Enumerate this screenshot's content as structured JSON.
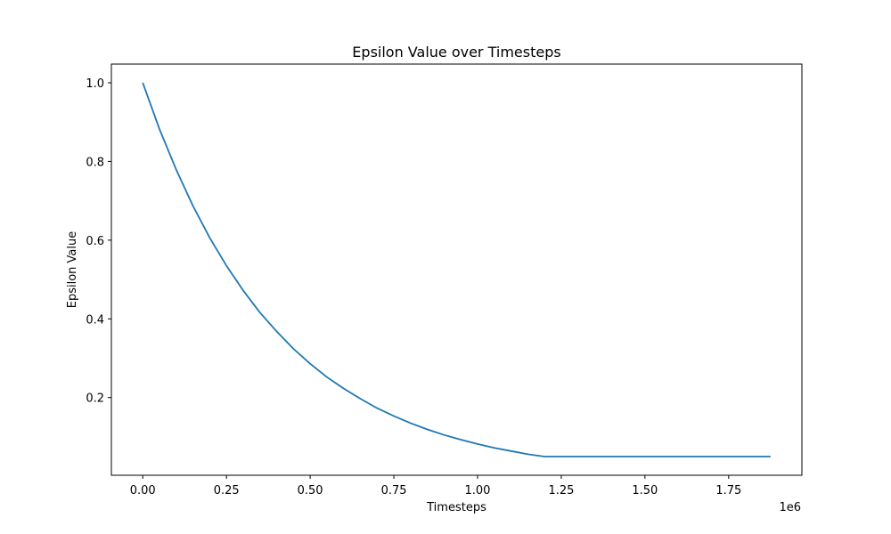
{
  "chart_data": {
    "type": "line",
    "title": "Epsilon Value over Timesteps",
    "xlabel": "Timesteps",
    "ylabel": "Epsilon Value",
    "x_offset_label": "1e6",
    "x_scale": 1000000,
    "xlim": [
      -0.09375,
      1.96875
    ],
    "ylim": [
      0.0025,
      1.0475
    ],
    "x_ticks": [
      0.0,
      0.25,
      0.5,
      0.75,
      1.0,
      1.25,
      1.5,
      1.75
    ],
    "x_tick_labels": [
      "0.00",
      "0.25",
      "0.50",
      "0.75",
      "1.00",
      "1.25",
      "1.50",
      "1.75"
    ],
    "y_ticks": [
      0.2,
      0.4,
      0.6,
      0.8,
      1.0
    ],
    "y_tick_labels": [
      "0.2",
      "0.4",
      "0.6",
      "0.8",
      "1.0"
    ],
    "grid": false,
    "series": [
      {
        "color": "#1f77b4",
        "x": [
          0.0,
          0.05,
          0.1,
          0.15,
          0.2,
          0.25,
          0.3,
          0.35,
          0.4,
          0.45,
          0.5,
          0.55,
          0.6,
          0.65,
          0.7,
          0.75,
          0.8,
          0.85,
          0.9,
          0.95,
          1.0,
          1.05,
          1.1,
          1.15,
          1.2,
          1.25,
          1.3,
          1.35,
          1.4,
          1.45,
          1.5,
          1.55,
          1.6,
          1.65,
          1.7,
          1.75,
          1.8,
          1.875
        ],
        "y": [
          1.0,
          0.882,
          0.779,
          0.687,
          0.606,
          0.535,
          0.472,
          0.416,
          0.368,
          0.324,
          0.286,
          0.252,
          0.223,
          0.197,
          0.173,
          0.153,
          0.135,
          0.119,
          0.105,
          0.093,
          0.082,
          0.072,
          0.064,
          0.056,
          0.05,
          0.05,
          0.05,
          0.05,
          0.05,
          0.05,
          0.05,
          0.05,
          0.05,
          0.05,
          0.05,
          0.05,
          0.05,
          0.05
        ]
      }
    ]
  }
}
